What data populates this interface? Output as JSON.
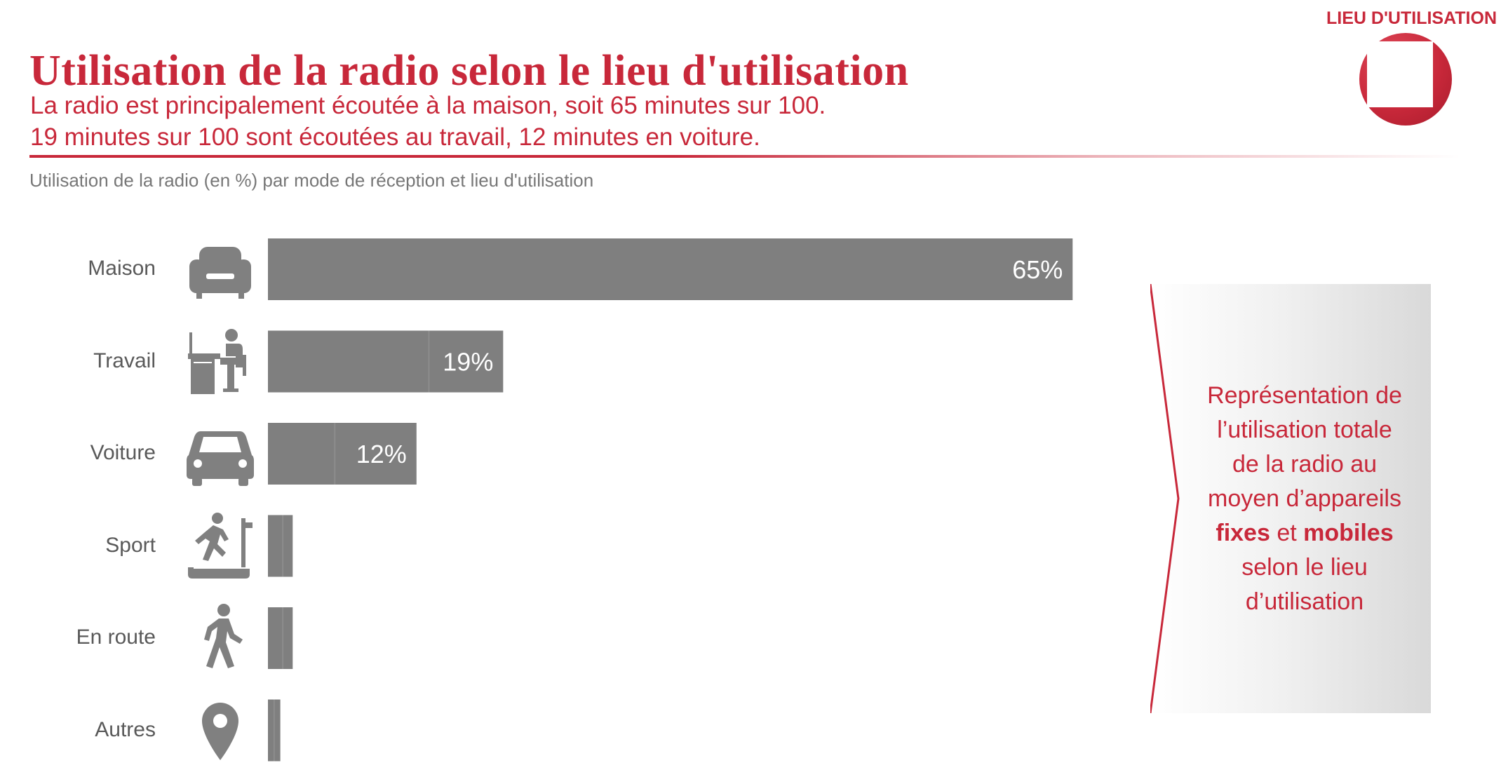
{
  "header": {
    "section_label": "LIEU D'UTILISATION",
    "title": "Utilisation de la radio selon le lieu d'utilisation",
    "subtitle_line1": "La radio est principalement écoutée à la maison, soit 65 minutes sur 100.",
    "subtitle_line2": "19 minutes sur 100 sont écoutées au travail, 12 minutes en voiture.",
    "caption": "Utilisation de la radio (en %) par mode de réception et lieu d'utilisation"
  },
  "icons": [
    "sofa-icon",
    "desk-worker-icon",
    "car-icon",
    "treadmill-runner-icon",
    "walking-person-icon",
    "location-pin-icon"
  ],
  "colors": {
    "accent": "#c8283a",
    "bar": "#7f7f7f",
    "bar_divider": "#8c8c8c",
    "label": "#595959",
    "icon": "#808080",
    "value_label": "#ffffff"
  },
  "chart_data": {
    "type": "bar",
    "orientation": "horizontal",
    "categories": [
      "Maison",
      "Travail",
      "Voiture",
      "Sport",
      "En route",
      "Autres"
    ],
    "values": [
      65,
      19,
      12,
      2,
      2,
      1
    ],
    "value_labels": [
      "65%",
      "19%",
      "12%",
      "",
      "",
      ""
    ],
    "split_points": [
      null,
      13,
      5.4,
      1.2,
      1.2,
      0.5
    ],
    "xlim": [
      0,
      100
    ],
    "grid": false,
    "legend": "none"
  },
  "side_panel": {
    "line1": "Représentation de",
    "line2": "l’utilisation totale",
    "line3": "de la radio au",
    "line4": "moyen d’appareils",
    "line5_bold1": "fixes",
    "line5_mid": " et ",
    "line5_bold2": "mobiles",
    "line6": "selon le lieu",
    "line7": "d’utilisation"
  }
}
